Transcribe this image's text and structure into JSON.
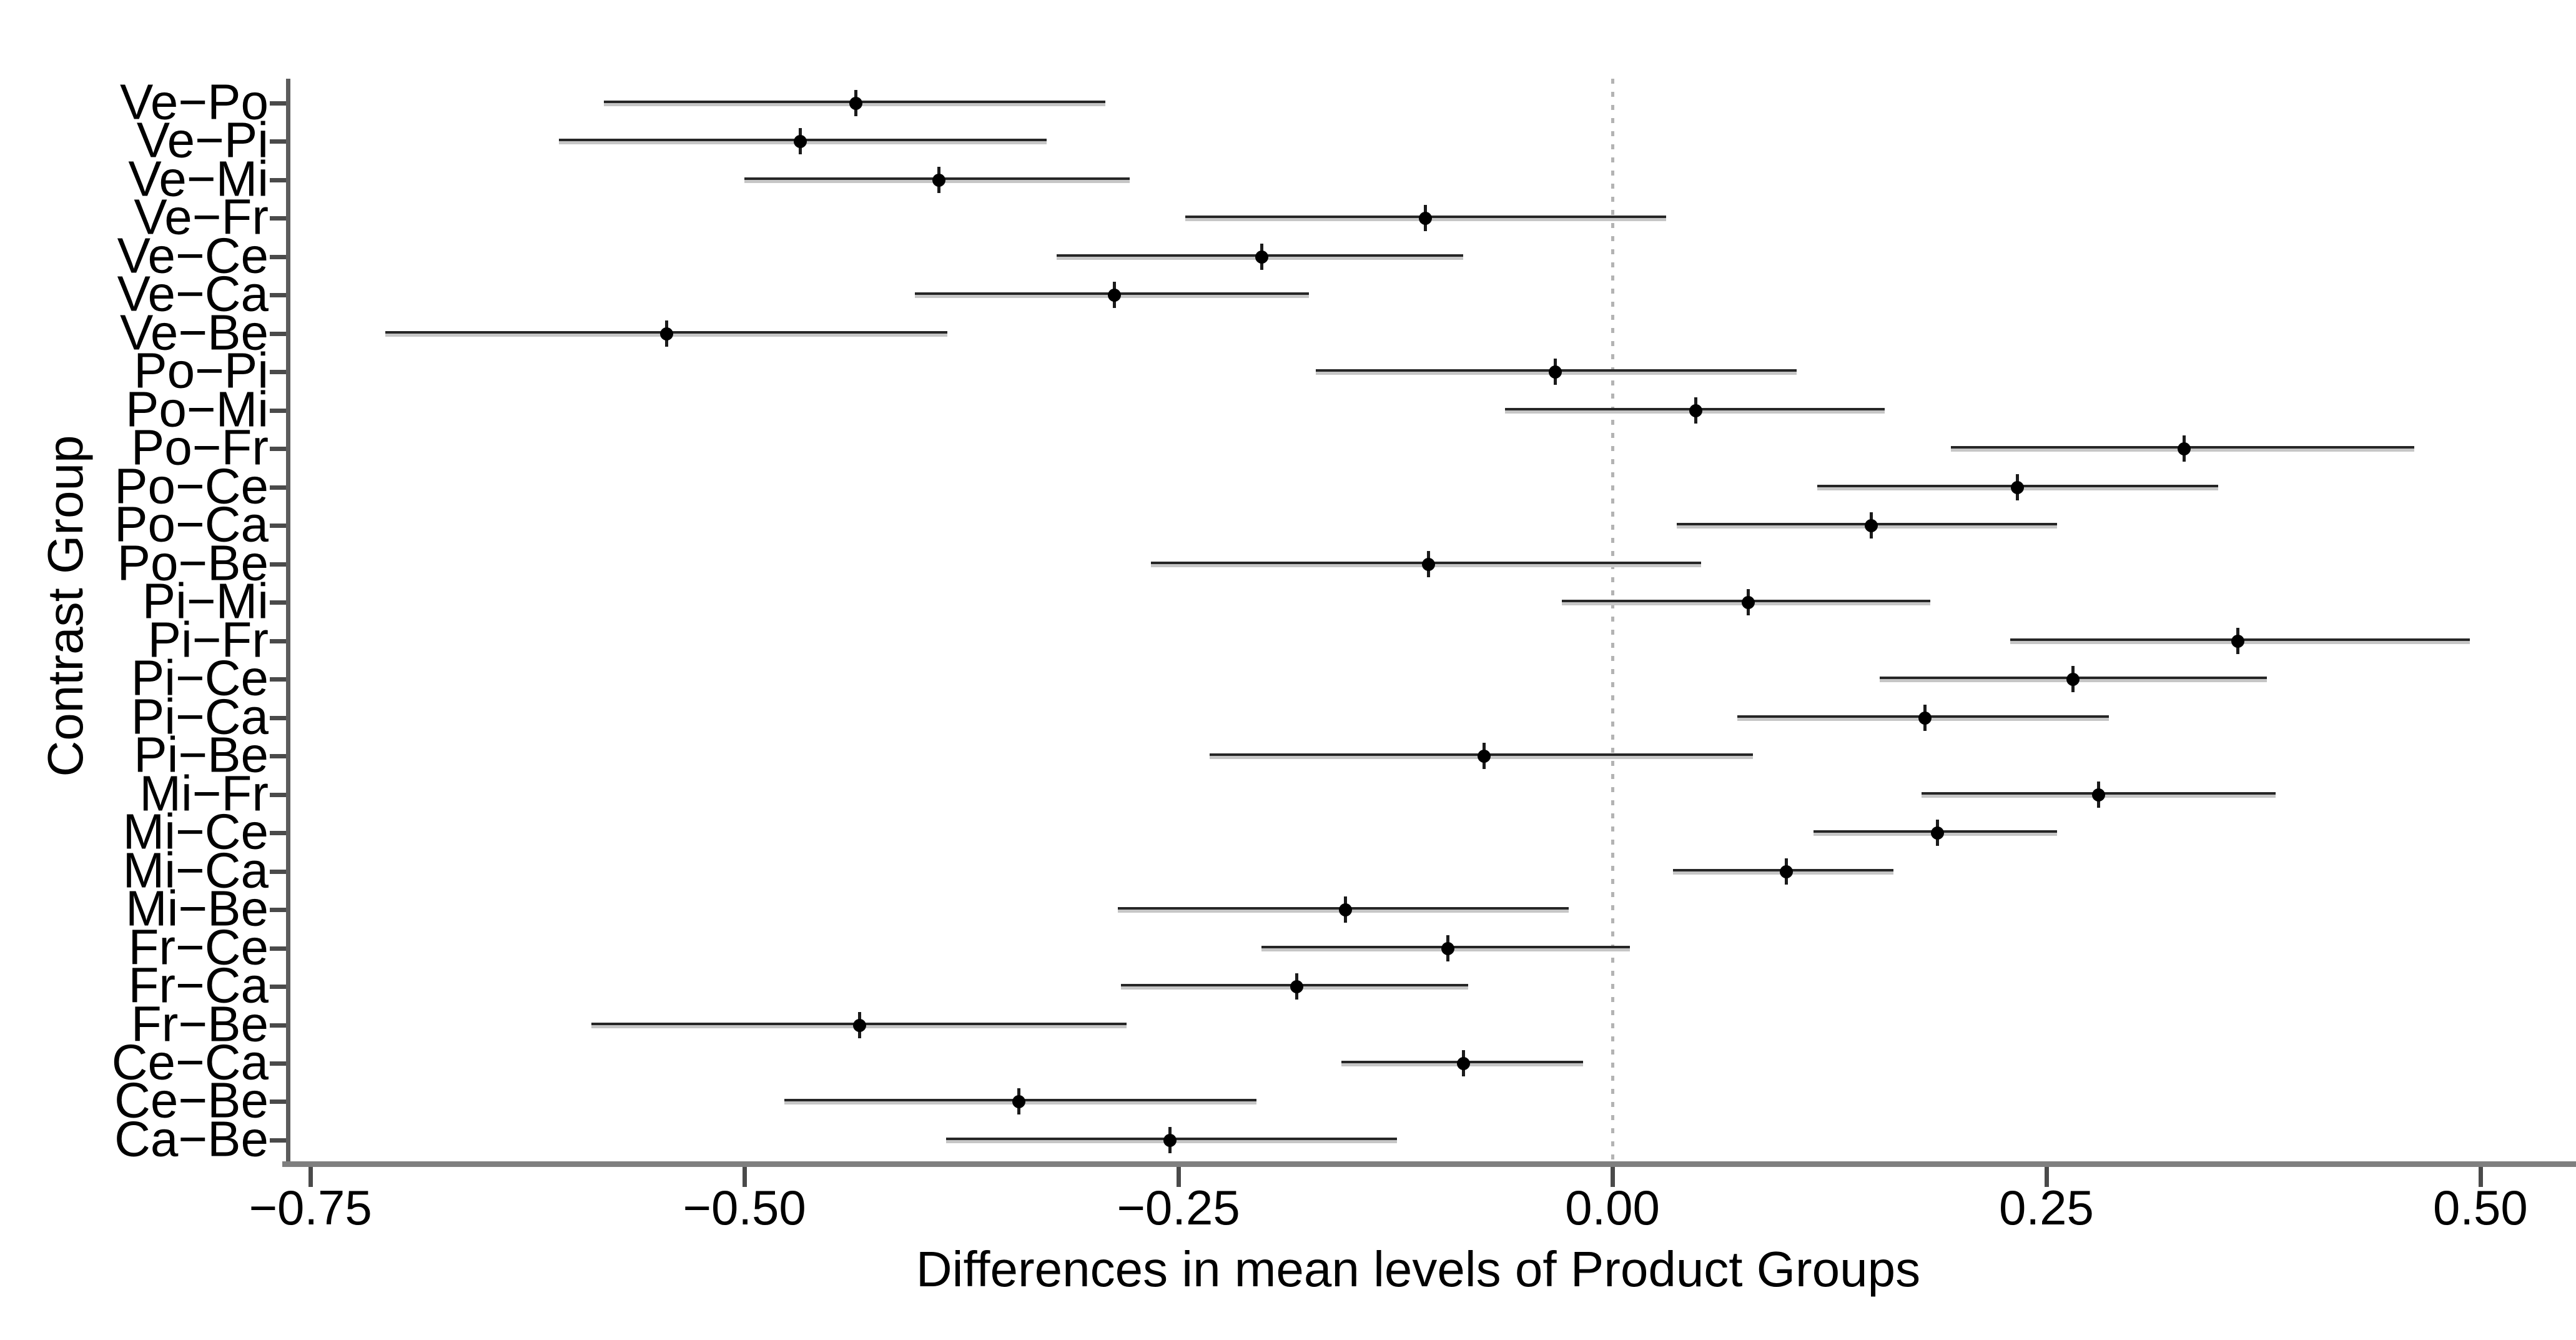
{
  "chart_data": {
    "type": "scatter",
    "style": "interval-plot (point estimate with confidence interval, Tukey HSD style)",
    "title": "",
    "xlabel": "Differences in mean levels of Product Groups",
    "ylabel": "Contrast Group",
    "xlim": [
      -0.764,
      0.555
    ],
    "x_ticks": [
      -0.75,
      -0.5,
      -0.25,
      0,
      0.25,
      0.5
    ],
    "x_tick_labels": [
      "−0.75",
      "−0.50",
      "−0.25",
      "0.00",
      "0.25",
      "0.50"
    ],
    "zero_reference_line": 0,
    "grid": "off",
    "legend": "none",
    "rows": [
      {
        "label": "Ve−Po",
        "lower": -0.581,
        "estimate": -0.436,
        "upper": -0.292
      },
      {
        "label": "Ve−Pi",
        "lower": -0.607,
        "estimate": -0.468,
        "upper": -0.326
      },
      {
        "label": "Ve−Mi",
        "lower": -0.5,
        "estimate": -0.388,
        "upper": -0.278
      },
      {
        "label": "Ve−Fr",
        "lower": -0.246,
        "estimate": -0.108,
        "upper": 0.031
      },
      {
        "label": "Ve−Ce",
        "lower": -0.32,
        "estimate": -0.202,
        "upper": -0.086
      },
      {
        "label": "Ve−Ca",
        "lower": -0.402,
        "estimate": -0.287,
        "upper": -0.175
      },
      {
        "label": "Ve−Be",
        "lower": -0.707,
        "estimate": -0.545,
        "upper": -0.383
      },
      {
        "label": "Po−Pi",
        "lower": -0.171,
        "estimate": -0.033,
        "upper": 0.106
      },
      {
        "label": "Po−Mi",
        "lower": -0.062,
        "estimate": 0.048,
        "upper": 0.157
      },
      {
        "label": "Po−Fr",
        "lower": 0.195,
        "estimate": 0.329,
        "upper": 0.462
      },
      {
        "label": "Po−Ce",
        "lower": 0.118,
        "estimate": 0.233,
        "upper": 0.349
      },
      {
        "label": "Po−Ca",
        "lower": 0.037,
        "estimate": 0.149,
        "upper": 0.256
      },
      {
        "label": "Po−Be",
        "lower": -0.266,
        "estimate": -0.106,
        "upper": 0.051
      },
      {
        "label": "Pi−Mi",
        "lower": -0.029,
        "estimate": 0.078,
        "upper": 0.183
      },
      {
        "label": "Pi−Fr",
        "lower": 0.229,
        "estimate": 0.36,
        "upper": 0.494
      },
      {
        "label": "Pi−Ce",
        "lower": 0.154,
        "estimate": 0.265,
        "upper": 0.377
      },
      {
        "label": "Pi−Ca",
        "lower": 0.072,
        "estimate": 0.18,
        "upper": 0.286
      },
      {
        "label": "Pi−Be",
        "lower": -0.232,
        "estimate": -0.074,
        "upper": 0.081
      },
      {
        "label": "Mi−Fr",
        "lower": 0.178,
        "estimate": 0.28,
        "upper": 0.382
      },
      {
        "label": "Mi−Ce",
        "lower": 0.116,
        "estimate": 0.187,
        "upper": 0.256
      },
      {
        "label": "Mi−Ca",
        "lower": 0.035,
        "estimate": 0.1,
        "upper": 0.162
      },
      {
        "label": "Mi−Be",
        "lower": -0.285,
        "estimate": -0.154,
        "upper": -0.025
      },
      {
        "label": "Fr−Ce",
        "lower": -0.202,
        "estimate": -0.095,
        "upper": 0.01
      },
      {
        "label": "Fr−Ca",
        "lower": -0.283,
        "estimate": -0.182,
        "upper": -0.083
      },
      {
        "label": "Fr−Be",
        "lower": -0.588,
        "estimate": -0.434,
        "upper": -0.28
      },
      {
        "label": "Ce−Ca",
        "lower": -0.156,
        "estimate": -0.086,
        "upper": -0.017
      },
      {
        "label": "Ce−Be",
        "lower": -0.477,
        "estimate": -0.342,
        "upper": -0.205
      },
      {
        "label": "Ca−Be",
        "lower": -0.384,
        "estimate": -0.255,
        "upper": -0.124
      }
    ]
  },
  "style": {
    "background": "#ffffff",
    "axis_line_color": "#5c5c5c",
    "axis_bar_color": "#7f7f7f",
    "tick_color": "#4a4a4a",
    "interval_dark": "#262626",
    "interval_light": "#c6c6c6",
    "point_color": "#000000",
    "zero_line_color": "#b3b3b3",
    "text_color": "#000000"
  }
}
